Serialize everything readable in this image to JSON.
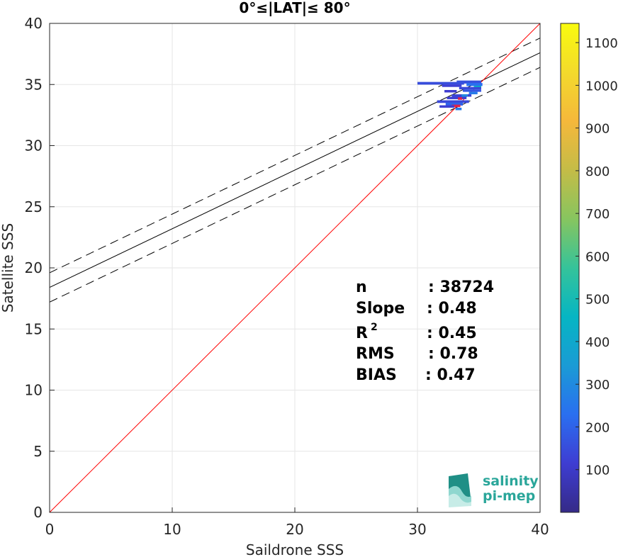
{
  "chart_data": {
    "type": "scatter",
    "title": "0°≤|LAT|≤ 80°",
    "xlabel": "Saildrone SSS",
    "ylabel": "Satellite SSS",
    "xlim": [
      0,
      40
    ],
    "ylim": [
      0,
      40
    ],
    "xticks": [
      "0",
      "10",
      "20",
      "30",
      "40"
    ],
    "yticks": [
      "0",
      "5",
      "10",
      "15",
      "20",
      "25",
      "30",
      "35",
      "40"
    ],
    "grid": true,
    "lines": {
      "identity": {
        "slope": 1,
        "intercept": 0,
        "color": "#ff0000"
      },
      "regression": {
        "slope": 0.48,
        "intercept": 18.4,
        "color": "#000000"
      },
      "upper_bound": {
        "slope": 0.48,
        "intercept": 19.6,
        "color": "#000000",
        "dashed": true
      },
      "lower_bound": {
        "slope": 0.48,
        "intercept": 17.2,
        "color": "#000000",
        "dashed": true
      }
    },
    "density_cells": [
      {
        "x": 30.0,
        "y": 35.1,
        "w": 3.8,
        "h": 0.22,
        "count": 150
      },
      {
        "x": 32.0,
        "y": 34.9,
        "w": 1.6,
        "h": 0.2,
        "count": 120
      },
      {
        "x": 33.2,
        "y": 35.2,
        "w": 2.0,
        "h": 0.25,
        "count": 160
      },
      {
        "x": 34.0,
        "y": 35.0,
        "w": 1.3,
        "h": 0.25,
        "count": 230
      },
      {
        "x": 34.6,
        "y": 34.8,
        "w": 0.6,
        "h": 0.2,
        "count": 450
      },
      {
        "x": 33.4,
        "y": 34.7,
        "w": 1.8,
        "h": 0.2,
        "count": 140
      },
      {
        "x": 32.2,
        "y": 34.45,
        "w": 1.0,
        "h": 0.2,
        "count": 110
      },
      {
        "x": 33.7,
        "y": 34.5,
        "w": 1.5,
        "h": 0.2,
        "count": 170
      },
      {
        "x": 34.2,
        "y": 34.3,
        "w": 0.7,
        "h": 0.2,
        "count": 260
      },
      {
        "x": 32.8,
        "y": 34.1,
        "w": 1.6,
        "h": 0.2,
        "count": 130
      },
      {
        "x": 33.6,
        "y": 34.1,
        "w": 0.5,
        "h": 0.2,
        "count": 300
      },
      {
        "x": 32.4,
        "y": 33.9,
        "w": 1.6,
        "h": 0.2,
        "count": 120
      },
      {
        "x": 33.3,
        "y": 33.85,
        "w": 0.35,
        "h": 0.2,
        "count": 40
      },
      {
        "x": 31.6,
        "y": 33.6,
        "w": 2.6,
        "h": 0.22,
        "count": 140
      },
      {
        "x": 32.3,
        "y": 33.4,
        "w": 1.4,
        "h": 0.25,
        "count": 200
      },
      {
        "x": 32.8,
        "y": 33.25,
        "w": 0.7,
        "h": 0.2,
        "count": 60
      },
      {
        "x": 31.8,
        "y": 33.2,
        "w": 1.2,
        "h": 0.2,
        "count": 120
      },
      {
        "x": 33.1,
        "y": 33.0,
        "w": 0.5,
        "h": 0.2,
        "count": 260
      }
    ],
    "colorbar": {
      "ticks": [
        100,
        200,
        300,
        400,
        500,
        600,
        700,
        800,
        900,
        1000,
        1100
      ],
      "range": [
        0,
        1145
      ],
      "colormap": "parula",
      "stops": [
        "#352a87",
        "#3e3dd2",
        "#2a6ff0",
        "#1a9bd5",
        "#06b5c3",
        "#35c39a",
        "#87c55f",
        "#c4bc47",
        "#f5b83b",
        "#f3da2c",
        "#f9fb0e"
      ]
    },
    "stats": [
      {
        "label": "n",
        "value": ": 38724"
      },
      {
        "label": "Slope",
        "value": ": 0.48"
      },
      {
        "label": "R",
        "sup": "2",
        "value": ": 0.45"
      },
      {
        "label": "RMS",
        "value": ": 0.78"
      },
      {
        "label": "BIAS",
        "value": ": 0.47"
      }
    ]
  },
  "logo": {
    "line1": "salinity",
    "line2": "pi-mep",
    "color": "#2aa69a"
  }
}
